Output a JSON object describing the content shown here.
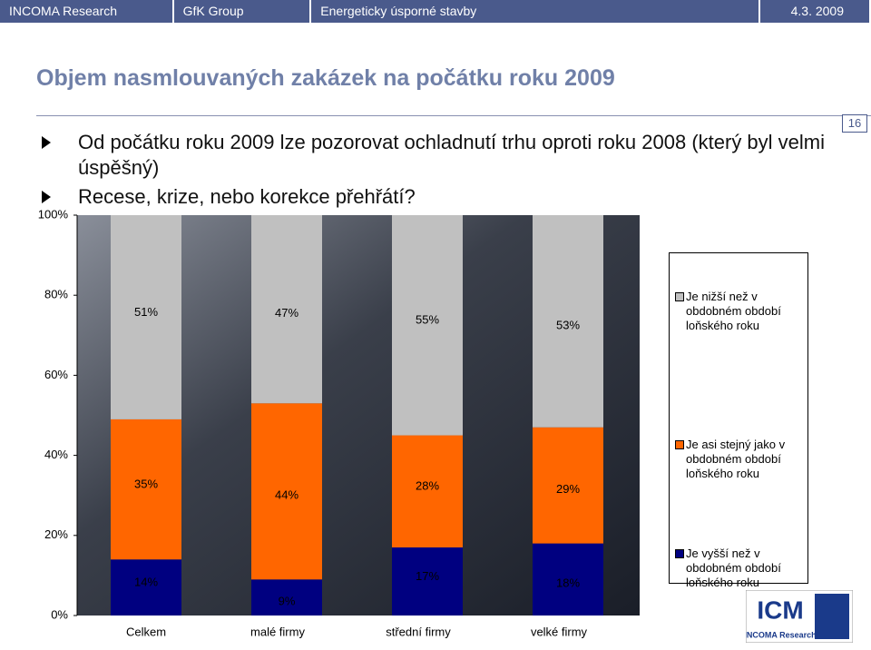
{
  "header": {
    "items": [
      "INCOMA Research",
      "GfK Group",
      "Energeticky úsporné stavby",
      "4.3. 2009"
    ]
  },
  "title": "Objem nasmlouvaných zakázek na počátku roku 2009",
  "page_number": "16",
  "bullets": [
    "Od počátku roku 2009 lze pozorovat ochladnutí trhu oproti roku 2008 (který byl velmi úspěšný)",
    "Recese, krize, nebo korekce přehřátí?"
  ],
  "logo": {
    "mark": "ICM",
    "name": "INCOMA Research"
  },
  "chart_data": {
    "type": "stacked-bar",
    "categories": [
      "Celkem",
      "malé firmy",
      "střední firmy",
      "velké firmy"
    ],
    "series": [
      {
        "name": "Je vyšší než v obdobném období loňského roku",
        "color": "#000080",
        "values": [
          14,
          9,
          17,
          18
        ],
        "value_labels": [
          "14%",
          "9%",
          "17%",
          "18%"
        ]
      },
      {
        "name": "Je asi stejný jako v obdobném období loňského roku",
        "color": "#ff6600",
        "values": [
          35,
          44,
          28,
          29
        ],
        "value_labels": [
          "35%",
          "44%",
          "28%",
          "29%"
        ]
      },
      {
        "name": "Je nižší než v obdobném období loňského roku",
        "color": "#c0c0c0",
        "values": [
          51,
          47,
          55,
          53
        ],
        "value_labels": [
          "51%",
          "47%",
          "55%",
          "53%"
        ]
      }
    ],
    "ylim": [
      0,
      100
    ],
    "yticks": [
      {
        "value": 0,
        "label": "0%"
      },
      {
        "value": 20,
        "label": "20%"
      },
      {
        "value": 40,
        "label": "40%"
      },
      {
        "value": 60,
        "label": "60%"
      },
      {
        "value": 80,
        "label": "80%"
      },
      {
        "value": 100,
        "label": "100%"
      }
    ]
  }
}
